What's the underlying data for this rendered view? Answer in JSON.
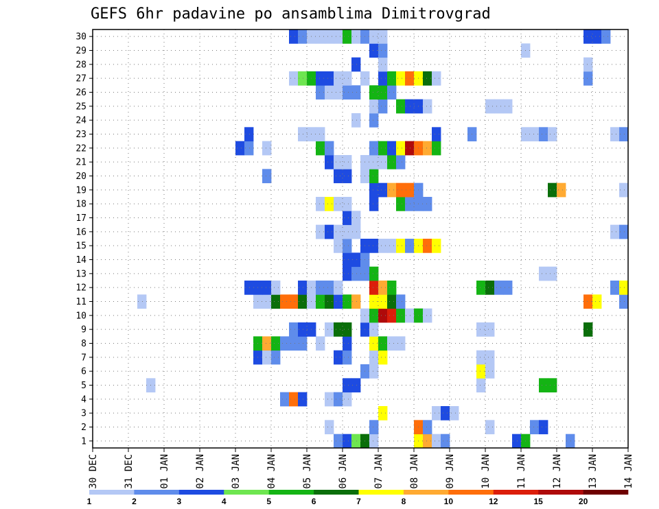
{
  "chart_data": {
    "type": "heatmap",
    "title": "GEFS 6hr padavine po ansamblima Dimitrovgrad",
    "xlabel": "",
    "ylabel": "",
    "x_tick_labels": [
      "30 DEC",
      "31 DEC",
      "01 JAN",
      "02 JAN",
      "03 JAN",
      "04 JAN",
      "05 JAN",
      "06 JAN",
      "07 JAN",
      "08 JAN",
      "09 JAN",
      "10 JAN",
      "11 JAN",
      "12 JAN",
      "13 JAN",
      "14 JAN"
    ],
    "x_range_steps": [
      0,
      60
    ],
    "steps_per_day": 4,
    "y_tick_labels": [
      "1",
      "2",
      "3",
      "4",
      "5",
      "6",
      "7",
      "8",
      "9",
      "10",
      "11",
      "12",
      "13",
      "14",
      "15",
      "16",
      "17",
      "18",
      "19",
      "20",
      "21",
      "22",
      "23",
      "24",
      "25",
      "26",
      "27",
      "28",
      "29",
      "30"
    ],
    "y_range": [
      0,
      30
    ],
    "grid": true,
    "legend": "bottom colorbar",
    "colorbar": {
      "boundaries": [
        "1",
        "2",
        "3",
        "4",
        "5",
        "6",
        "7",
        "8",
        "10",
        "12",
        "15",
        "20"
      ],
      "colors": [
        "#b4c8f5",
        "#5f8ceb",
        "#1e4be1",
        "#6ee650",
        "#14b414",
        "#0a6e0a",
        "#ffff00",
        "#ffaa32",
        "#ff6e0a",
        "#dc1e0a",
        "#af0a0a",
        "#6e0000"
      ]
    },
    "cells": [
      [
        1,
        [
          [
            28,
            2
          ],
          [
            29,
            3
          ],
          [
            30,
            4
          ],
          [
            31,
            6
          ],
          [
            32,
            1
          ],
          [
            37,
            7
          ],
          [
            38,
            8
          ],
          [
            39,
            1
          ],
          [
            40,
            2
          ],
          [
            48,
            3
          ],
          [
            49,
            5
          ],
          [
            54,
            2
          ]
        ]
      ],
      [
        2,
        [
          [
            27,
            1
          ],
          [
            32,
            2
          ],
          [
            37,
            9
          ],
          [
            38,
            2
          ],
          [
            45,
            1
          ],
          [
            50,
            2
          ],
          [
            51,
            3
          ]
        ]
      ],
      [
        3,
        [
          [
            33,
            7
          ],
          [
            39,
            1
          ],
          [
            40,
            3
          ],
          [
            41,
            1
          ]
        ]
      ],
      [
        4,
        [
          [
            22,
            2
          ],
          [
            23,
            9
          ],
          [
            24,
            3
          ],
          [
            27,
            1
          ],
          [
            28,
            2
          ],
          [
            29,
            1
          ]
        ]
      ],
      [
        5,
        [
          [
            7,
            1
          ],
          [
            29,
            3
          ],
          [
            30,
            3
          ],
          [
            44,
            1
          ],
          [
            51,
            5
          ],
          [
            52,
            5
          ]
        ]
      ],
      [
        6,
        [
          [
            31,
            2
          ],
          [
            32,
            1
          ],
          [
            44,
            7
          ],
          [
            45,
            1
          ]
        ]
      ],
      [
        7,
        [
          [
            19,
            3
          ],
          [
            20,
            1
          ],
          [
            21,
            2
          ],
          [
            28,
            3
          ],
          [
            29,
            2
          ],
          [
            32,
            1
          ],
          [
            33,
            7
          ],
          [
            44,
            1
          ],
          [
            45,
            1
          ]
        ]
      ],
      [
        8,
        [
          [
            19,
            5
          ],
          [
            20,
            8
          ],
          [
            21,
            5
          ],
          [
            22,
            2
          ],
          [
            23,
            2
          ],
          [
            24,
            2
          ],
          [
            26,
            1
          ],
          [
            29,
            3
          ],
          [
            32,
            7
          ],
          [
            33,
            5
          ],
          [
            34,
            1
          ],
          [
            35,
            1
          ]
        ]
      ],
      [
        9,
        [
          [
            23,
            2
          ],
          [
            24,
            3
          ],
          [
            25,
            3
          ],
          [
            27,
            1
          ],
          [
            28,
            6
          ],
          [
            29,
            6
          ],
          [
            31,
            3
          ],
          [
            32,
            1
          ],
          [
            44,
            1
          ],
          [
            45,
            1
          ],
          [
            56,
            6
          ]
        ]
      ],
      [
        10,
        [
          [
            31,
            1
          ],
          [
            32,
            5
          ],
          [
            33,
            11
          ],
          [
            34,
            10
          ],
          [
            35,
            5
          ],
          [
            36,
            1
          ],
          [
            37,
            5
          ],
          [
            38,
            1
          ]
        ]
      ],
      [
        11,
        [
          [
            6,
            1
          ],
          [
            19,
            1
          ],
          [
            20,
            1
          ],
          [
            21,
            6
          ],
          [
            22,
            9
          ],
          [
            23,
            9
          ],
          [
            24,
            6
          ],
          [
            25,
            1
          ],
          [
            26,
            5
          ],
          [
            27,
            6
          ],
          [
            28,
            3
          ],
          [
            29,
            5
          ],
          [
            30,
            8
          ],
          [
            32,
            7
          ],
          [
            33,
            7
          ],
          [
            34,
            6
          ],
          [
            35,
            2
          ],
          [
            56,
            9
          ],
          [
            57,
            7
          ],
          [
            60,
            2
          ]
        ]
      ],
      [
        12,
        [
          [
            18,
            3
          ],
          [
            19,
            3
          ],
          [
            20,
            3
          ],
          [
            21,
            1
          ],
          [
            24,
            3
          ],
          [
            25,
            1
          ],
          [
            26,
            2
          ],
          [
            27,
            2
          ],
          [
            28,
            1
          ],
          [
            32,
            10
          ],
          [
            33,
            8
          ],
          [
            34,
            5
          ],
          [
            44,
            5
          ],
          [
            45,
            6
          ],
          [
            46,
            2
          ],
          [
            47,
            2
          ],
          [
            59,
            2
          ],
          [
            60,
            7
          ]
        ]
      ],
      [
        13,
        [
          [
            29,
            3
          ],
          [
            30,
            2
          ],
          [
            31,
            2
          ],
          [
            32,
            5
          ],
          [
            51,
            1
          ],
          [
            52,
            1
          ]
        ]
      ],
      [
        14,
        [
          [
            29,
            3
          ],
          [
            30,
            3
          ],
          [
            31,
            2
          ]
        ]
      ],
      [
        15,
        [
          [
            28,
            1
          ],
          [
            29,
            2
          ],
          [
            31,
            3
          ],
          [
            32,
            3
          ],
          [
            33,
            1
          ],
          [
            34,
            1
          ],
          [
            35,
            7
          ],
          [
            36,
            2
          ],
          [
            37,
            7
          ],
          [
            38,
            9
          ],
          [
            39,
            7
          ]
        ]
      ],
      [
        16,
        [
          [
            26,
            1
          ],
          [
            27,
            3
          ],
          [
            28,
            1
          ],
          [
            29,
            1
          ],
          [
            30,
            1
          ],
          [
            59,
            1
          ],
          [
            60,
            2
          ]
        ]
      ],
      [
        17,
        [
          [
            29,
            3
          ],
          [
            30,
            1
          ]
        ]
      ],
      [
        18,
        [
          [
            26,
            1
          ],
          [
            27,
            7
          ],
          [
            28,
            1
          ],
          [
            29,
            1
          ],
          [
            32,
            3
          ],
          [
            35,
            5
          ],
          [
            36,
            2
          ],
          [
            37,
            2
          ],
          [
            38,
            2
          ]
        ]
      ],
      [
        19,
        [
          [
            32,
            3
          ],
          [
            33,
            3
          ],
          [
            34,
            8
          ],
          [
            35,
            9
          ],
          [
            36,
            9
          ],
          [
            37,
            2
          ],
          [
            52,
            6
          ],
          [
            53,
            8
          ],
          [
            60,
            1
          ]
        ]
      ],
      [
        20,
        [
          [
            20,
            2
          ],
          [
            28,
            3
          ],
          [
            29,
            3
          ],
          [
            31,
            1
          ],
          [
            32,
            5
          ]
        ]
      ],
      [
        21,
        [
          [
            27,
            3
          ],
          [
            28,
            1
          ],
          [
            29,
            1
          ],
          [
            31,
            1
          ],
          [
            32,
            1
          ],
          [
            33,
            1
          ],
          [
            34,
            5
          ],
          [
            35,
            2
          ]
        ]
      ],
      [
        22,
        [
          [
            17,
            3
          ],
          [
            18,
            2
          ],
          [
            20,
            1
          ],
          [
            26,
            5
          ],
          [
            27,
            2
          ],
          [
            32,
            2
          ],
          [
            33,
            5
          ],
          [
            34,
            3
          ],
          [
            35,
            7
          ],
          [
            36,
            11
          ],
          [
            37,
            9
          ],
          [
            38,
            8
          ],
          [
            39,
            5
          ]
        ]
      ],
      [
        23,
        [
          [
            18,
            3
          ],
          [
            24,
            1
          ],
          [
            25,
            1
          ],
          [
            26,
            1
          ],
          [
            39,
            3
          ],
          [
            43,
            2
          ],
          [
            49,
            1
          ],
          [
            50,
            1
          ],
          [
            51,
            2
          ],
          [
            52,
            1
          ],
          [
            59,
            1
          ],
          [
            60,
            2
          ]
        ]
      ],
      [
        24,
        [
          [
            30,
            1
          ],
          [
            32,
            2
          ]
        ]
      ],
      [
        25,
        [
          [
            32,
            1
          ],
          [
            33,
            2
          ],
          [
            35,
            5
          ],
          [
            36,
            3
          ],
          [
            37,
            3
          ],
          [
            38,
            1
          ],
          [
            45,
            1
          ],
          [
            46,
            1
          ],
          [
            47,
            1
          ]
        ]
      ],
      [
        26,
        [
          [
            26,
            2
          ],
          [
            27,
            1
          ],
          [
            28,
            1
          ],
          [
            29,
            2
          ],
          [
            30,
            2
          ],
          [
            32,
            5
          ],
          [
            33,
            5
          ],
          [
            34,
            2
          ]
        ]
      ],
      [
        27,
        [
          [
            23,
            1
          ],
          [
            24,
            4
          ],
          [
            25,
            5
          ],
          [
            26,
            3
          ],
          [
            27,
            3
          ],
          [
            28,
            1
          ],
          [
            29,
            1
          ],
          [
            31,
            1
          ],
          [
            33,
            3
          ],
          [
            34,
            5
          ],
          [
            35,
            7
          ],
          [
            36,
            9
          ],
          [
            37,
            7
          ],
          [
            38,
            6
          ],
          [
            39,
            1
          ],
          [
            56,
            2
          ]
        ]
      ],
      [
        28,
        [
          [
            30,
            3
          ],
          [
            33,
            1
          ],
          [
            56,
            1
          ]
        ]
      ],
      [
        29,
        [
          [
            32,
            3
          ],
          [
            33,
            2
          ],
          [
            49,
            1
          ]
        ]
      ],
      [
        30,
        [
          [
            23,
            3
          ],
          [
            24,
            2
          ],
          [
            25,
            1
          ],
          [
            26,
            1
          ],
          [
            27,
            1
          ],
          [
            28,
            1
          ],
          [
            29,
            5
          ],
          [
            30,
            1
          ],
          [
            31,
            2
          ],
          [
            32,
            1
          ],
          [
            33,
            1
          ],
          [
            56,
            3
          ],
          [
            57,
            3
          ],
          [
            58,
            2
          ]
        ]
      ]
    ]
  }
}
